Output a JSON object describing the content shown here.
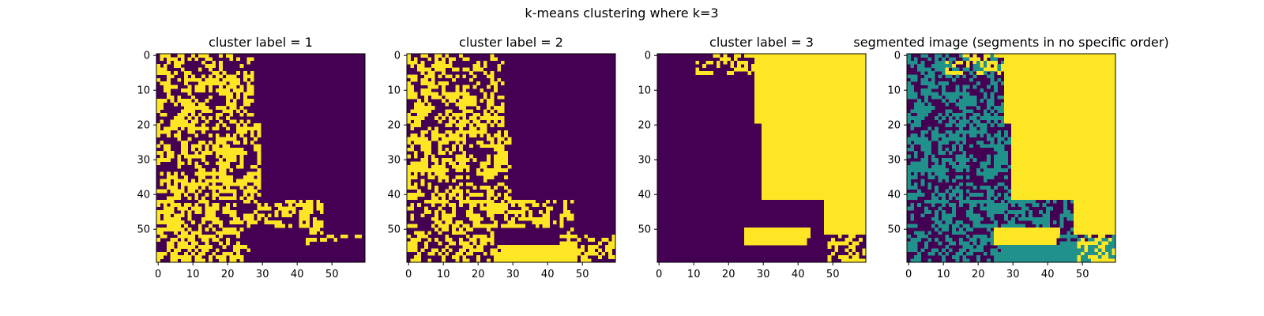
{
  "figure": {
    "suptitle": "k-means clustering where k=3"
  },
  "chart_data": [
    {
      "type": "heatmap",
      "title": "cluster label = 1",
      "grid": false,
      "shape": [
        60,
        60
      ],
      "xlim": [
        -0.5,
        59.5
      ],
      "ylim": [
        59.5,
        -0.5
      ],
      "xticks": [
        0,
        10,
        20,
        30,
        40,
        50
      ],
      "yticks": [
        0,
        10,
        20,
        30,
        40,
        50
      ],
      "xtick_labels": [
        "0",
        "10",
        "20",
        "30",
        "40",
        "50"
      ],
      "ytick_labels": [
        "0",
        "10",
        "20",
        "30",
        "40",
        "50"
      ],
      "colormap": [
        "#440154",
        "#fde725"
      ],
      "value_range": [
        0,
        1
      ]
    },
    {
      "type": "heatmap",
      "title": "cluster label = 2",
      "grid": false,
      "shape": [
        60,
        60
      ],
      "xlim": [
        -0.5,
        59.5
      ],
      "ylim": [
        59.5,
        -0.5
      ],
      "xticks": [
        0,
        10,
        20,
        30,
        40,
        50
      ],
      "yticks": [
        0,
        10,
        20,
        30,
        40,
        50
      ],
      "xtick_labels": [
        "0",
        "10",
        "20",
        "30",
        "40",
        "50"
      ],
      "ytick_labels": [
        "0",
        "10",
        "20",
        "30",
        "40",
        "50"
      ],
      "colormap": [
        "#440154",
        "#fde725"
      ],
      "value_range": [
        0,
        1
      ]
    },
    {
      "type": "heatmap",
      "title": "cluster label = 3",
      "grid": false,
      "shape": [
        60,
        60
      ],
      "xlim": [
        -0.5,
        59.5
      ],
      "ylim": [
        59.5,
        -0.5
      ],
      "xticks": [
        0,
        10,
        20,
        30,
        40,
        50
      ],
      "yticks": [
        0,
        10,
        20,
        30,
        40,
        50
      ],
      "xtick_labels": [
        "0",
        "10",
        "20",
        "30",
        "40",
        "50"
      ],
      "ytick_labels": [
        "0",
        "10",
        "20",
        "30",
        "40",
        "50"
      ],
      "colormap": [
        "#440154",
        "#fde725"
      ],
      "value_range": [
        0,
        1
      ]
    },
    {
      "type": "heatmap",
      "title": "segmented image (segments in no specific order)",
      "grid": false,
      "shape": [
        60,
        60
      ],
      "xlim": [
        -0.5,
        59.5
      ],
      "ylim": [
        59.5,
        -0.5
      ],
      "xticks": [
        0,
        10,
        20,
        30,
        40,
        50
      ],
      "yticks": [
        0,
        10,
        20,
        30,
        40,
        50
      ],
      "xtick_labels": [
        "0",
        "10",
        "20",
        "30",
        "40",
        "50"
      ],
      "ytick_labels": [
        "0",
        "10",
        "20",
        "30",
        "40",
        "50"
      ],
      "colormap": [
        "#440154",
        "#21918c",
        "#fde725"
      ],
      "value_range": [
        0,
        2
      ]
    }
  ]
}
